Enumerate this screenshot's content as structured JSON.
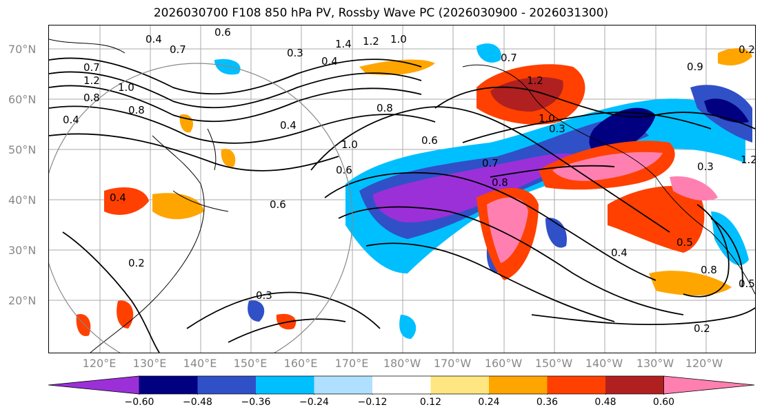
{
  "title": "2026030700 F108 850 hPa PV, Rossby Wave PC (2026030900 - 2026031300)",
  "lat_labels": [
    "70°N",
    "60°N",
    "50°N",
    "40°N",
    "30°N",
    "20°N"
  ],
  "lon_labels": [
    "120°E",
    "130°E",
    "140°E",
    "150°E",
    "160°E",
    "170°E",
    "180°W",
    "170°W",
    "160°W",
    "150°W",
    "140°W",
    "130°W",
    "120°W"
  ],
  "colorbar": {
    "tick_labels": [
      "−0.60",
      "−0.48",
      "−0.36",
      "−0.24",
      "−0.12",
      "0.12",
      "0.24",
      "0.36",
      "0.48",
      "0.60"
    ],
    "colors": [
      "#9b30d9",
      "#000080",
      "#3050c8",
      "#00bfff",
      "#b0e0ff",
      "#ffffff",
      "#ffe680",
      "#ffa500",
      "#ff4000",
      "#b02020",
      "#ff80b0"
    ]
  },
  "contour_labels": [
    "0.4",
    "0.7",
    "0.3",
    "1.4",
    "1.2",
    "1.0",
    "0.4",
    "0.7",
    "1.2",
    "0.7",
    "0.8",
    "1.2",
    "1.0",
    "0.8",
    "0.9",
    "0.4",
    "0.4",
    "0.8",
    "0.6",
    "1.0",
    "0.6",
    "0.7",
    "0.8",
    "0.3",
    "0.6",
    "0.4",
    "0.2",
    "0.3",
    "0.5",
    "0.4",
    "0.8",
    "0.5",
    "0.2",
    "0.2",
    "1.2",
    "1.0",
    "0.6",
    "0.3"
  ]
}
